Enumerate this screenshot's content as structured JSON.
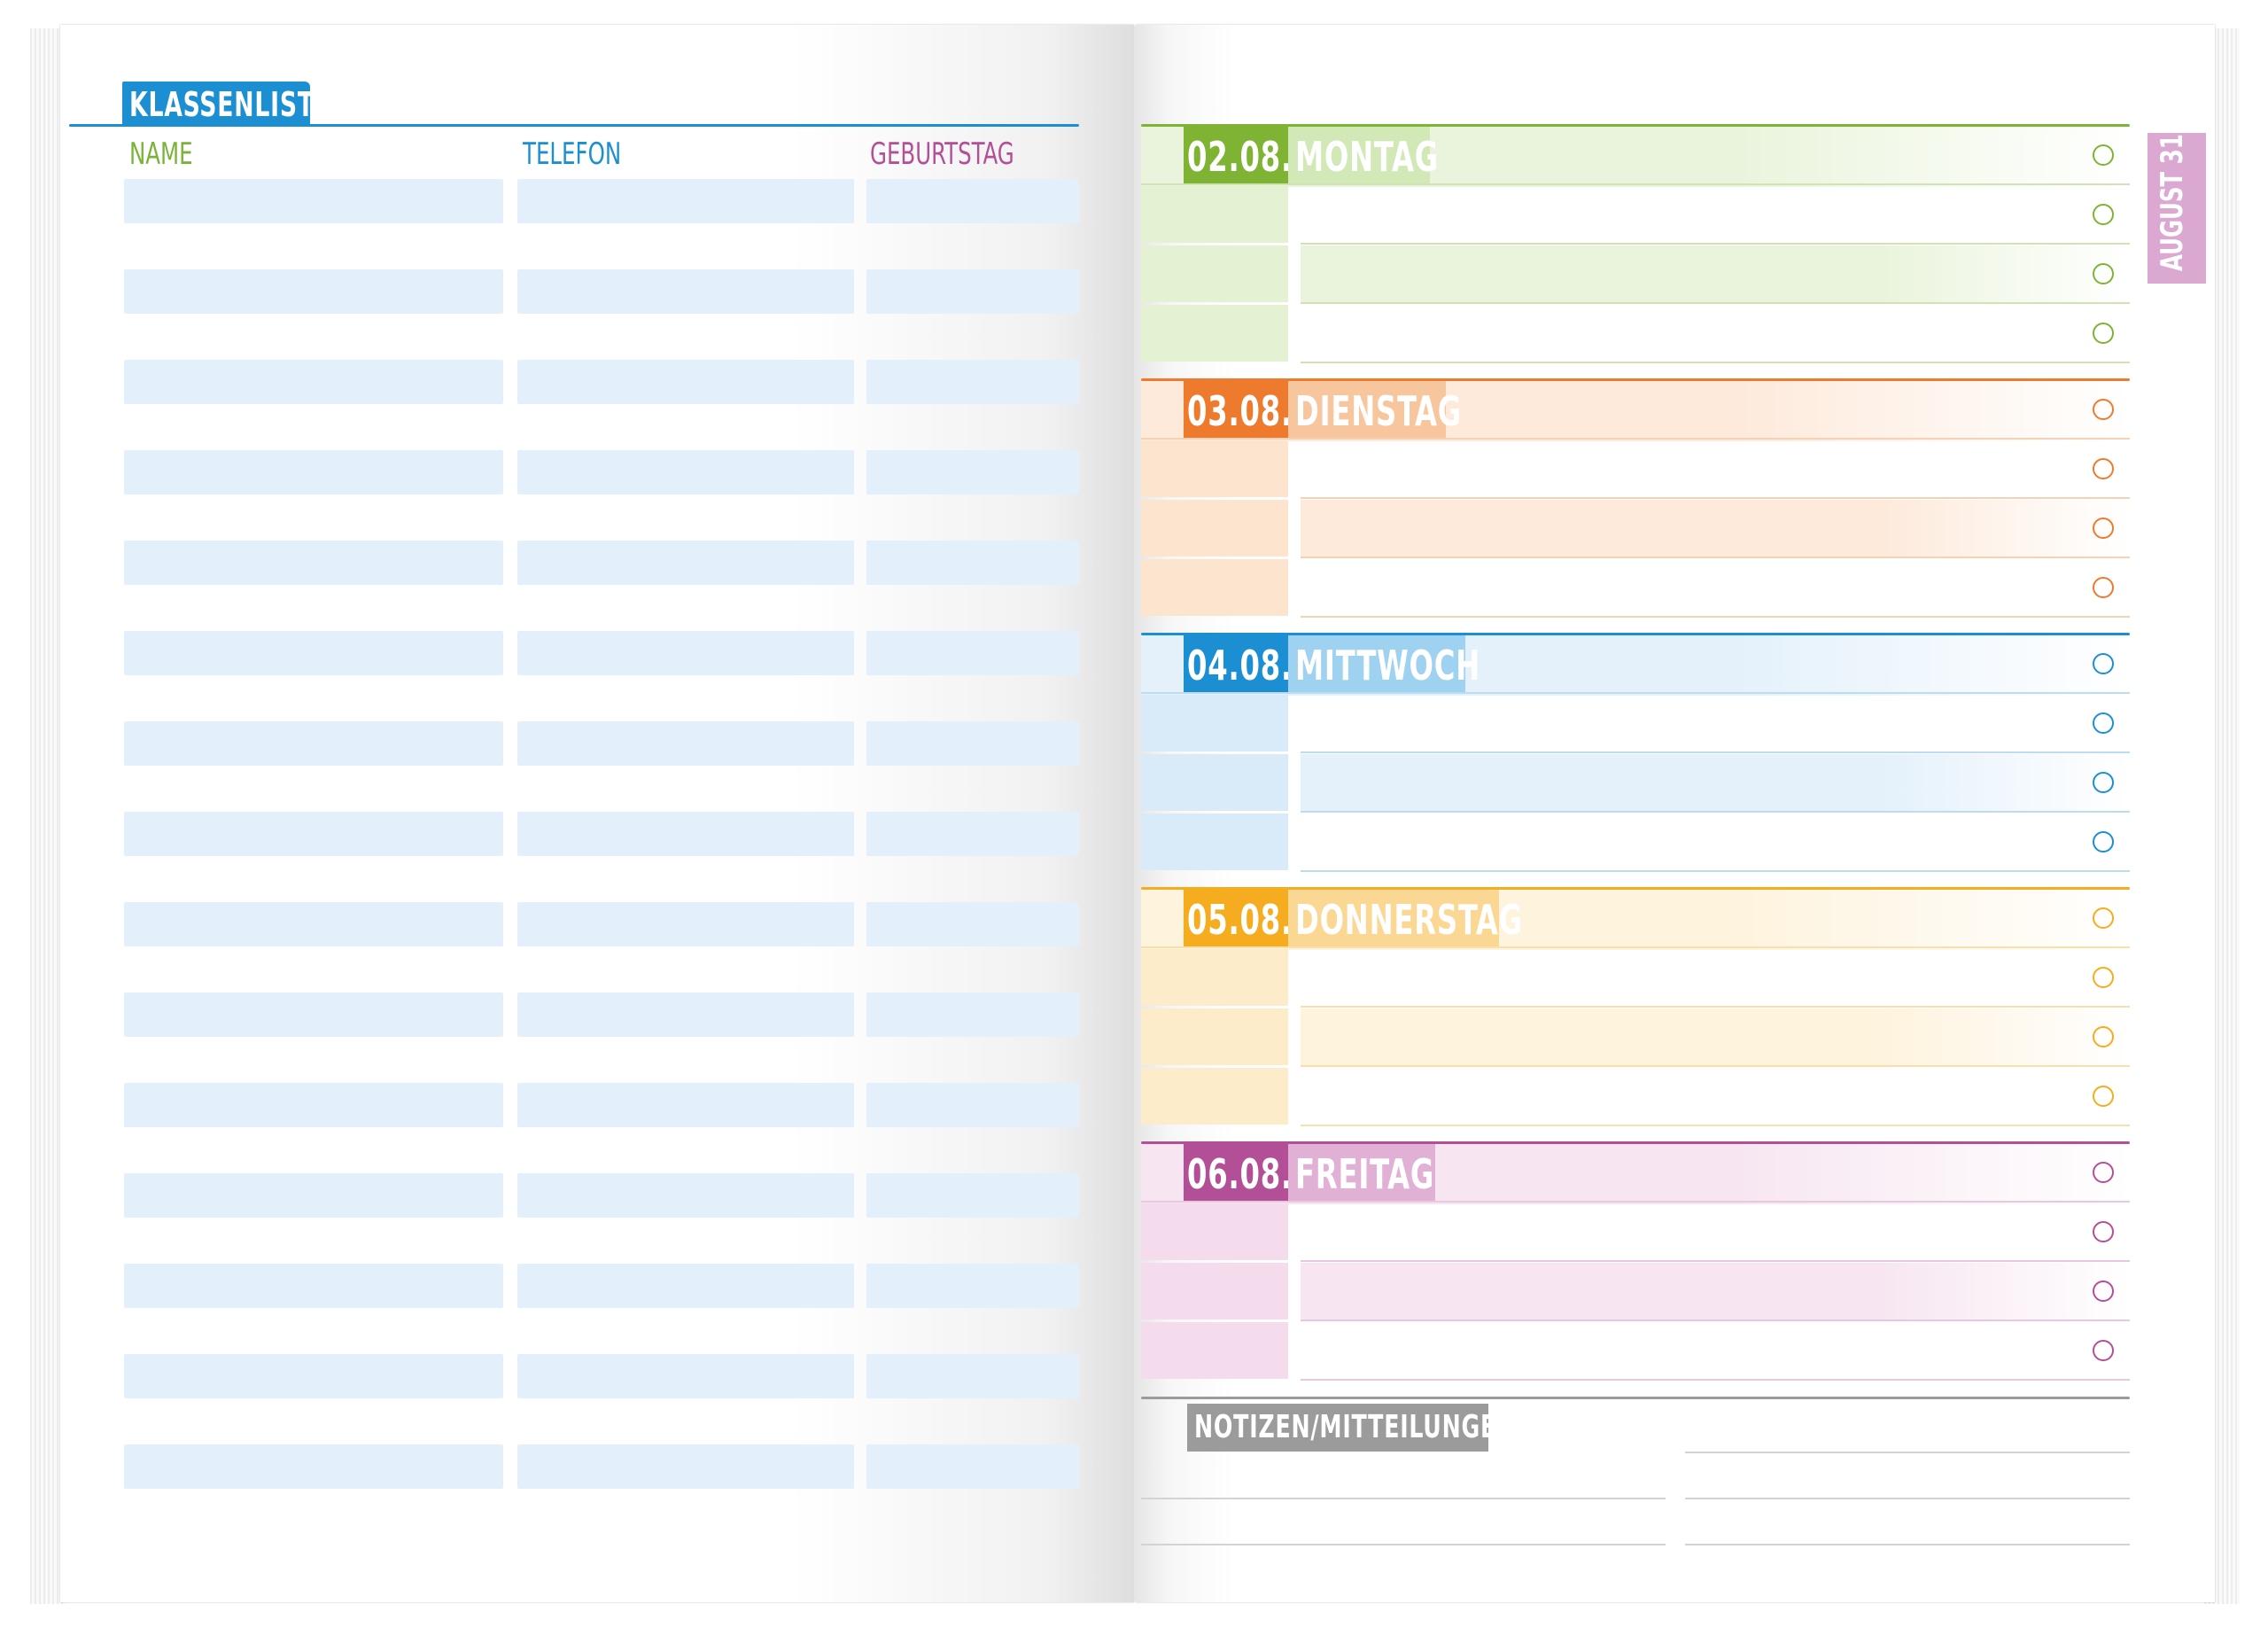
{
  "klassenliste": {
    "title": "KLASSENLISTE",
    "columns": [
      {
        "label": "NAME",
        "color": "#7ab33a"
      },
      {
        "label": "TELEFON",
        "color": "#1b8fd2"
      },
      {
        "label": "GEBURTSTAG",
        "color": "#b34f96"
      }
    ],
    "row_count": 15,
    "accent": "#1b8fd2",
    "row_color": "#e3f0fb"
  },
  "week": {
    "month_tab": "AUGUST 31",
    "month_tab_color": "#dba8d2",
    "days": [
      {
        "date": "02.08.",
        "name": "MONTAG",
        "dark": "#7fb334",
        "light": "#d2e8b6",
        "band": "#eaf4dc",
        "cell": "#e5f1d3",
        "line": "#cfe3b5"
      },
      {
        "date": "03.08.",
        "name": "DIENSTAG",
        "dark": "#ee7a2d",
        "light": "#f7c69d",
        "band": "#fdeadb",
        "cell": "#fde4cf",
        "line": "#f5d2b5"
      },
      {
        "date": "04.08.",
        "name": "MITTWOCH",
        "dark": "#1b8fd2",
        "light": "#9fd1f0",
        "band": "#e4f1fb",
        "cell": "#d9ebf8",
        "line": "#bcdcf2"
      },
      {
        "date": "05.08.",
        "name": "DONNERSTAG",
        "dark": "#f5ac1f",
        "light": "#fbd794",
        "band": "#fef3dd",
        "cell": "#fdecc9",
        "line": "#f8dfab"
      },
      {
        "date": "06.08.",
        "name": "FREITAG",
        "dark": "#b34f96",
        "light": "#e0b1d4",
        "band": "#f7e6f1",
        "cell": "#f4dcec",
        "line": "#e9c8df"
      }
    ],
    "notes_title": "NOTIZEN/MITTEILUNGEN"
  }
}
